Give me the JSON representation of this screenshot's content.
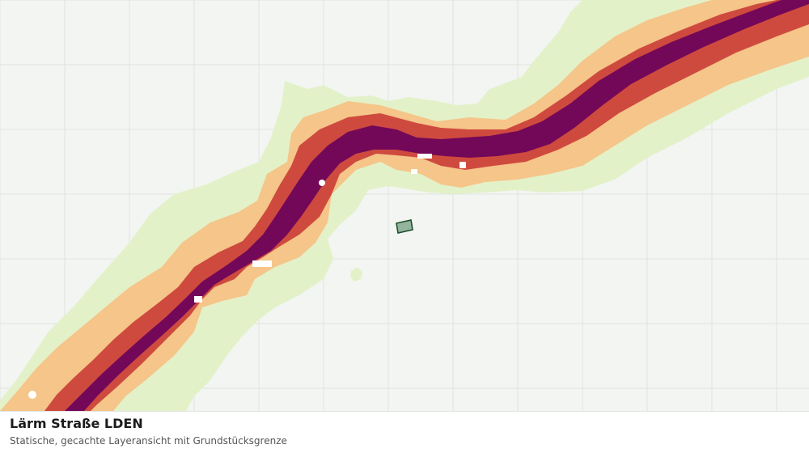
{
  "layer": {
    "title": "Lärm Straße LDEN",
    "subtitle": "Statische, gecachte Layeransicht mit Grundstücksgrenze"
  },
  "colors": {
    "background": "#f3f5f2",
    "grid": "#dfe2de",
    "noise_low": "#e3f1c9",
    "noise_medium": "#f5c589",
    "noise_high": "#cf4a3e",
    "noise_very_high": "#730859",
    "parcel_fill": "#93b59d",
    "parcel_outline": "#1e4f2c"
  },
  "icons": {
    "parcel": "parcel-boundary-icon"
  }
}
